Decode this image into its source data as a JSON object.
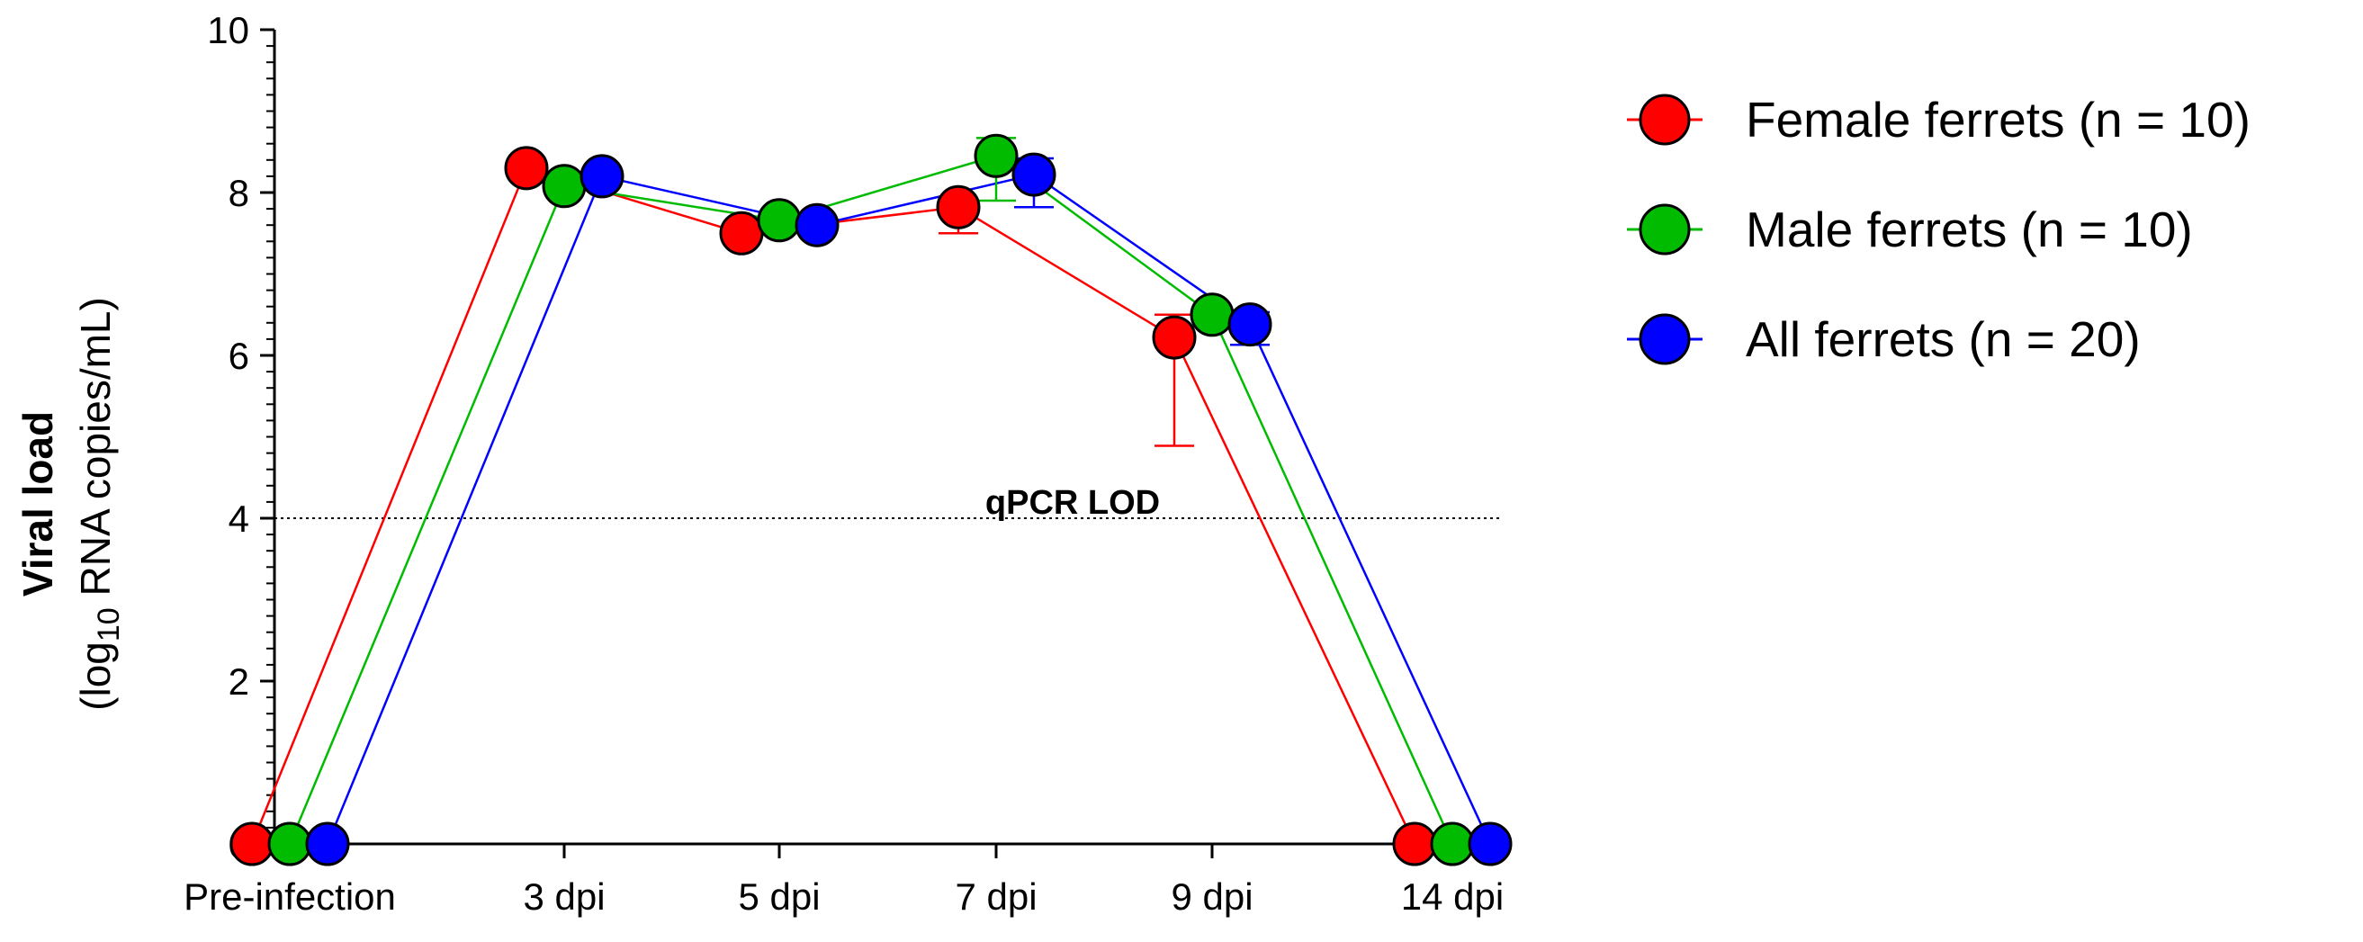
{
  "chart_data": {
    "type": "line",
    "title": "",
    "ylabel_bold": "Viral load",
    "ylabel_prefix": "(log",
    "ylabel_sub": "10",
    "ylabel_suffix": " RNA copies/mL)",
    "xlabel": "",
    "categories": [
      "Pre-infection",
      "3 dpi",
      "5 dpi",
      "7 dpi",
      "9 dpi",
      "14 dpi"
    ],
    "ylim": [
      0,
      10
    ],
    "yticks": [
      "0",
      "2",
      "4",
      "6",
      "8",
      "10"
    ],
    "ytick_values": [
      0,
      2,
      4,
      6,
      8,
      10
    ],
    "series": [
      {
        "name": "Female ferrets (n = 10)",
        "color": "#ff0000",
        "values": [
          0,
          8.3,
          7.5,
          7.82,
          6.22,
          0
        ],
        "err_low": [
          0,
          0,
          0,
          0.32,
          1.33,
          0
        ],
        "err_high": [
          0,
          0,
          0,
          0,
          0.28,
          0
        ]
      },
      {
        "name": "Male ferrets (n = 10)",
        "color": "#00bb00",
        "values": [
          0,
          8.08,
          7.66,
          8.45,
          6.5,
          0
        ],
        "err_low": [
          0,
          0,
          0,
          0.55,
          0,
          0
        ],
        "err_high": [
          0,
          0,
          0,
          0.22,
          0,
          0
        ]
      },
      {
        "name": "All ferrets (n = 20)",
        "color": "#0000ff",
        "values": [
          0,
          8.2,
          7.6,
          8.22,
          6.38,
          0
        ],
        "err_low": [
          0,
          0,
          0,
          0.4,
          0.25,
          0
        ],
        "err_high": [
          0,
          0,
          0,
          0.2,
          0.15,
          0
        ]
      }
    ],
    "reference_line": {
      "value": 4,
      "label": "qPCR LOD",
      "style": "dotted"
    },
    "legend_position": "right"
  }
}
